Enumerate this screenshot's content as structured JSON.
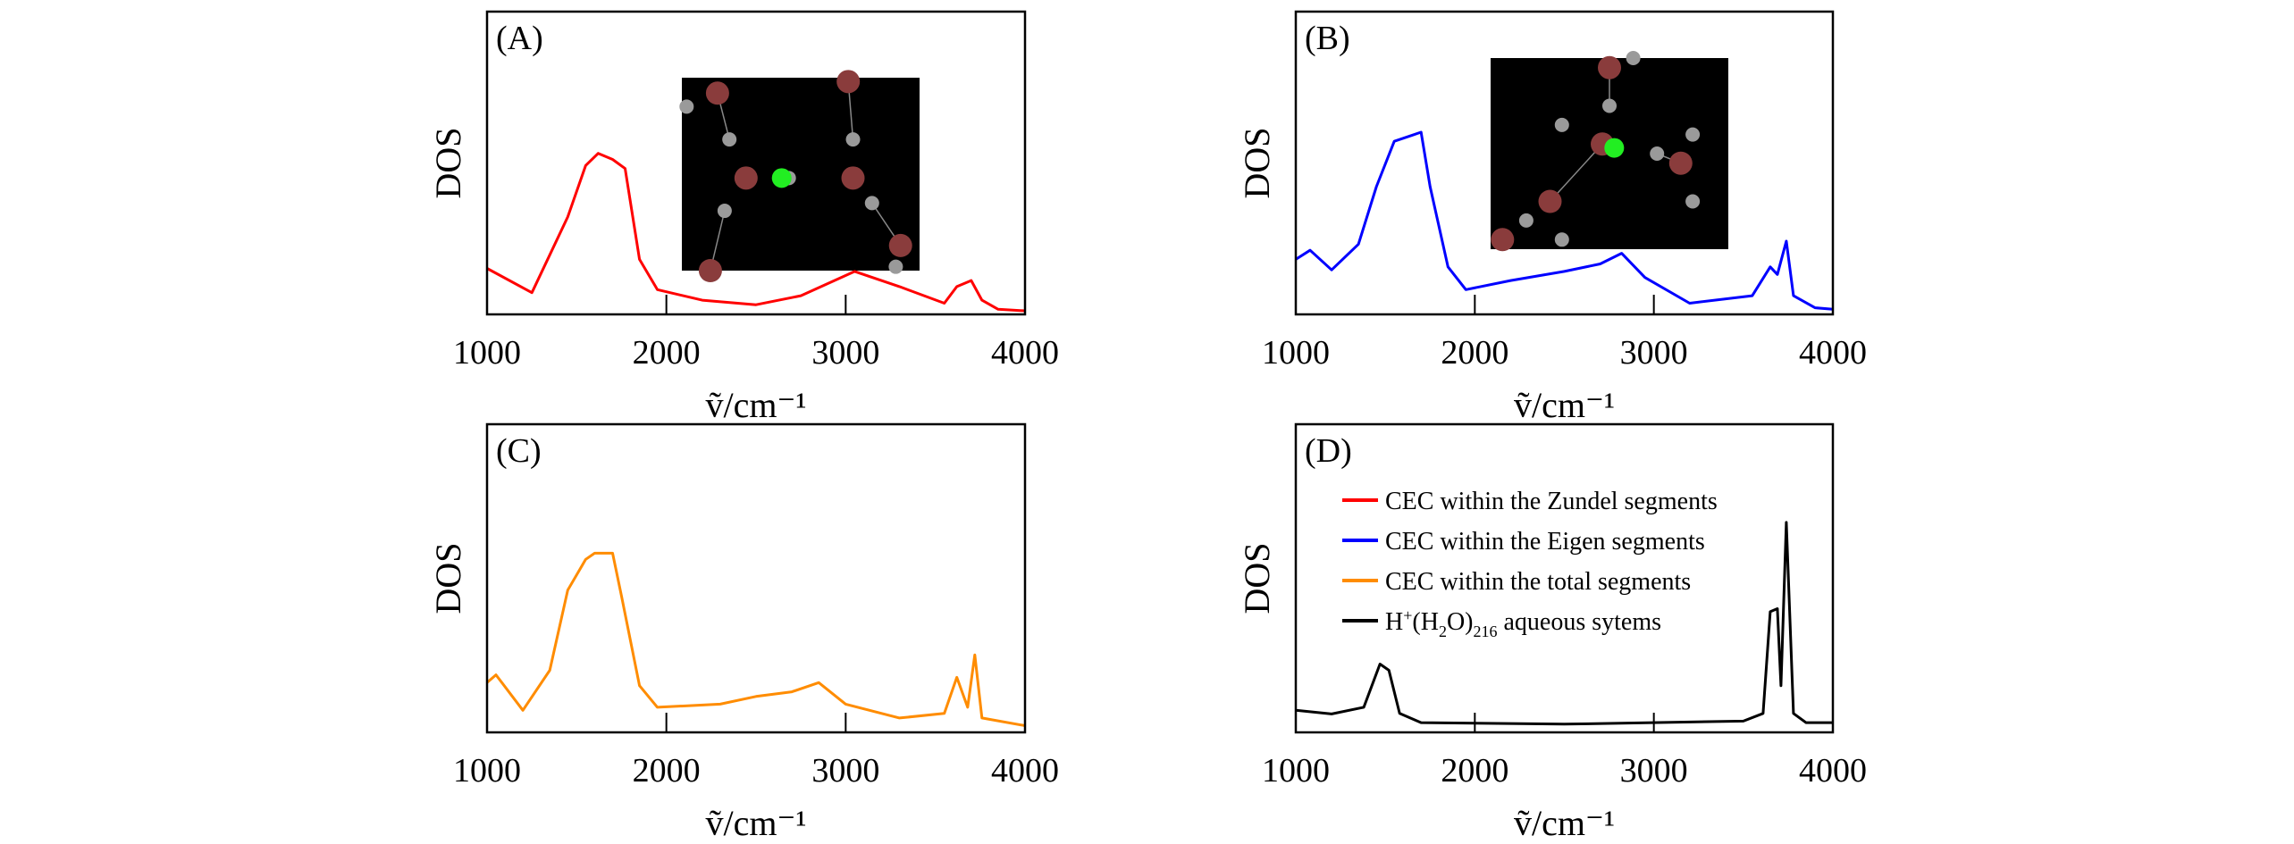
{
  "chart_data": [
    {
      "type": "line",
      "panel_label": "(A)",
      "xlabel": "ṽ/cm⁻¹",
      "ylabel": "DOS",
      "xlim": [
        1000,
        4000
      ],
      "ylim": [
        0,
        1
      ],
      "xticks": [
        "1000",
        "2000",
        "3000",
        "4000"
      ],
      "color": "#ff0000",
      "inset": "Zundel structure snapshot",
      "x": [
        1000,
        1250,
        1450,
        1550,
        1620,
        1700,
        1770,
        1850,
        1950,
        2200,
        2500,
        2750,
        3050,
        3300,
        3550,
        3620,
        3700,
        3760,
        3850,
        4000
      ],
      "y": [
        0.14,
        0.06,
        0.31,
        0.48,
        0.52,
        0.5,
        0.47,
        0.17,
        0.07,
        0.035,
        0.02,
        0.05,
        0.13,
        0.08,
        0.025,
        0.08,
        0.1,
        0.035,
        0.005,
        0
      ]
    },
    {
      "type": "line",
      "panel_label": "(B)",
      "xlabel": "ṽ/cm⁻¹",
      "ylabel": "DOS",
      "xlim": [
        1000,
        4000
      ],
      "ylim": [
        0,
        1
      ],
      "xticks": [
        "1000",
        "2000",
        "3000",
        "4000"
      ],
      "color": "#0000ff",
      "inset": "Eigen structure snapshot",
      "x": [
        1000,
        1080,
        1200,
        1350,
        1450,
        1550,
        1600,
        1650,
        1700,
        1750,
        1850,
        1950,
        2200,
        2500,
        2700,
        2820,
        2950,
        3200,
        3550,
        3650,
        3690,
        3740,
        3780,
        3900,
        4000
      ],
      "y": [
        0.17,
        0.2,
        0.135,
        0.22,
        0.41,
        0.56,
        0.57,
        0.58,
        0.59,
        0.41,
        0.145,
        0.07,
        0.1,
        0.13,
        0.155,
        0.19,
        0.11,
        0.025,
        0.05,
        0.145,
        0.12,
        0.23,
        0.05,
        0.01,
        0.005
      ]
    },
    {
      "type": "line",
      "panel_label": "(C)",
      "xlabel": "ṽ/cm⁻¹",
      "ylabel": "DOS",
      "xlim": [
        1000,
        4000
      ],
      "ylim": [
        0,
        1
      ],
      "xticks": [
        "1000",
        "2000",
        "3000",
        "4000"
      ],
      "color": "#ff8c00",
      "x": [
        1000,
        1050,
        1200,
        1350,
        1450,
        1550,
        1600,
        1700,
        1750,
        1850,
        1950,
        2300,
        2500,
        2700,
        2850,
        3000,
        3300,
        3550,
        3620,
        3680,
        3720,
        3760,
        4000
      ],
      "y": [
        0.15,
        0.175,
        0.06,
        0.19,
        0.45,
        0.55,
        0.57,
        0.57,
        0.43,
        0.14,
        0.07,
        0.08,
        0.105,
        0.12,
        0.15,
        0.08,
        0.035,
        0.05,
        0.167,
        0.07,
        0.24,
        0.035,
        0.01
      ]
    },
    {
      "type": "line",
      "panel_label": "(D)",
      "xlabel": "ṽ/cm⁻¹",
      "ylabel": "DOS",
      "xlim": [
        1000,
        4000
      ],
      "ylim": [
        0,
        1
      ],
      "xticks": [
        "1000",
        "2000",
        "3000",
        "4000"
      ],
      "color": "#000000",
      "x": [
        1000,
        1200,
        1380,
        1470,
        1520,
        1580,
        1700,
        2500,
        3500,
        3610,
        3650,
        3690,
        3710,
        3740,
        3780,
        3850,
        4000
      ],
      "y": [
        0.06,
        0.048,
        0.07,
        0.21,
        0.19,
        0.05,
        0.02,
        0.015,
        0.025,
        0.05,
        0.38,
        0.39,
        0.14,
        0.67,
        0.05,
        0.02,
        0.02
      ],
      "legend": {
        "placement": "top-left",
        "entries": [
          {
            "label": "CEC within the Zundel segments",
            "color": "#ff0000"
          },
          {
            "label": "CEC within the Eigen segments",
            "color": "#0000ff"
          },
          {
            "label": "CEC within the total segments",
            "color": "#ff8c00"
          },
          {
            "label_main": "H",
            "label_sup": "+",
            "label_mid1": "(H",
            "label_sub1": "2",
            "label_mid2": "O)",
            "label_sub2": "216",
            "label_end": " aqueous sytems",
            "color": "#000000"
          }
        ]
      }
    }
  ]
}
